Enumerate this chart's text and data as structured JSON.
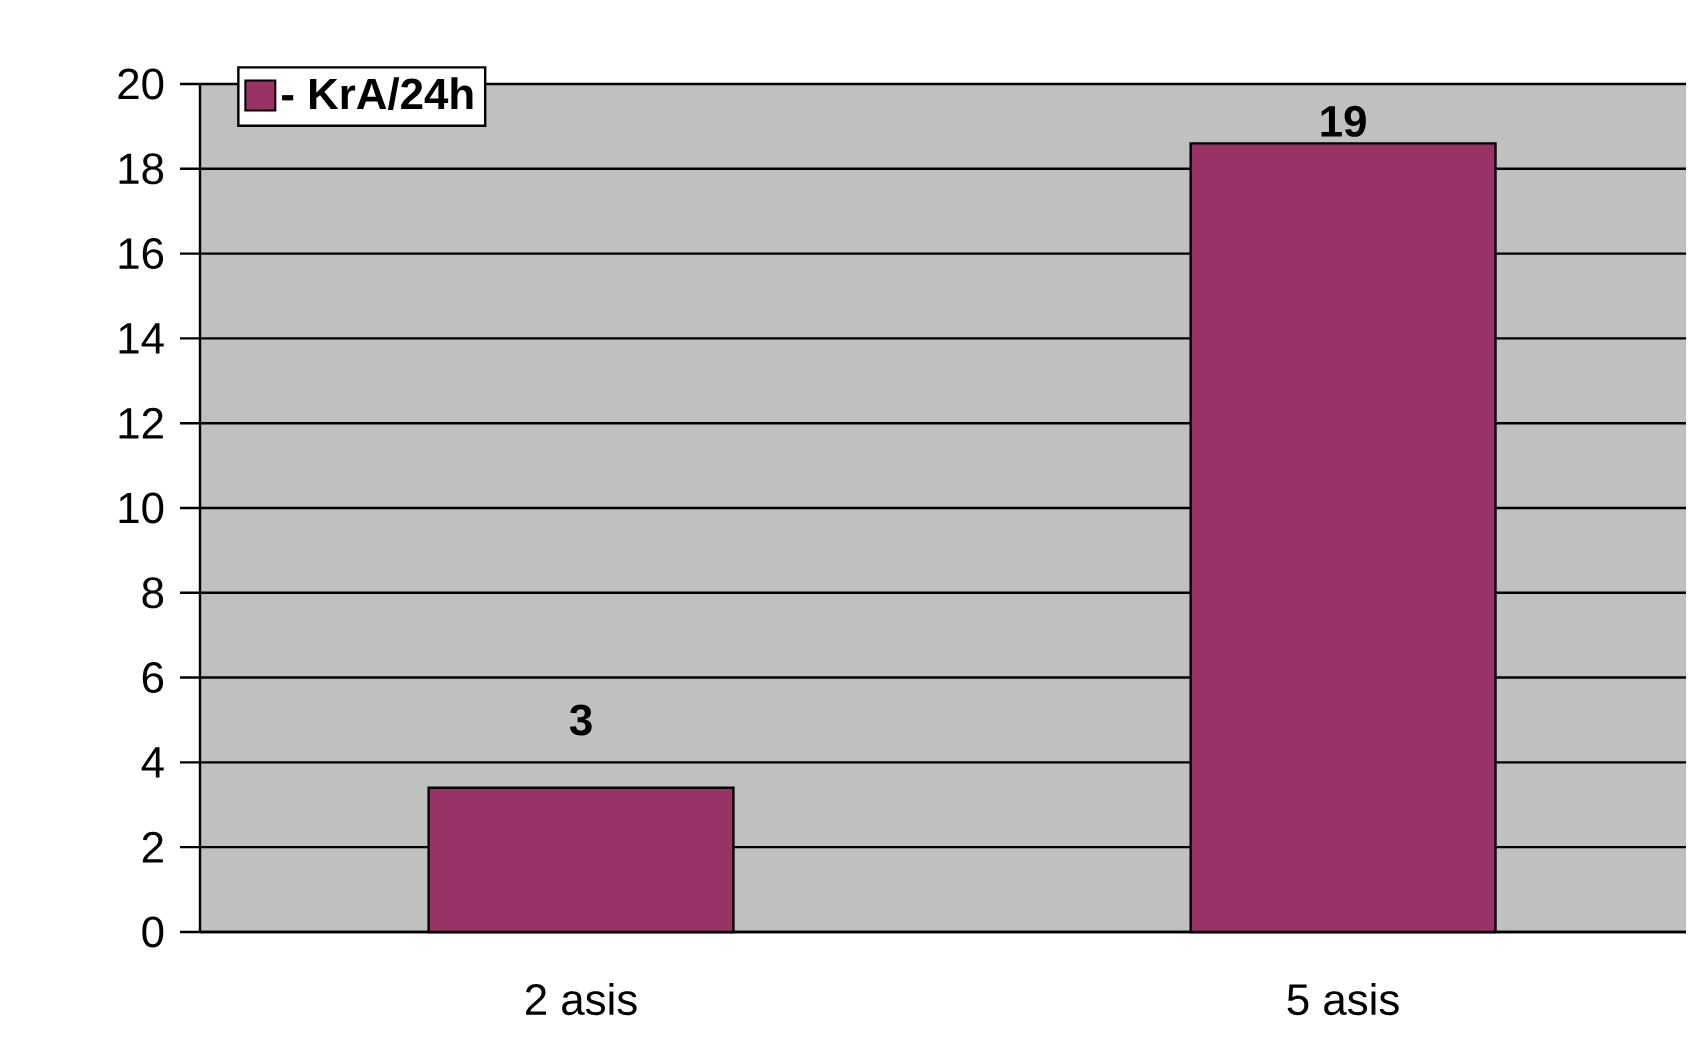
{
  "chart_data": {
    "type": "bar",
    "categories": [
      "2 asis",
      "5 asis"
    ],
    "series": [
      {
        "name": "- KrA/24h",
        "color": "#993366",
        "values": [
          3.4,
          18.6
        ],
        "value_labels": [
          "3",
          "19"
        ]
      }
    ],
    "ylim": [
      0,
      20
    ],
    "yticks": [
      0,
      2,
      4,
      6,
      8,
      10,
      12,
      14,
      16,
      18,
      20
    ],
    "grid": "y",
    "legend": "top left"
  }
}
